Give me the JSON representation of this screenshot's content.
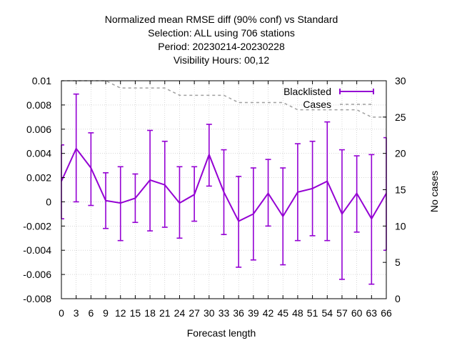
{
  "chart_data": {
    "type": "line",
    "title_lines": [
      "Normalized mean RMSE diff (90% conf) vs Standard",
      "Selection: ALL using   706 stations",
      "Period: 20230214-20230228",
      "Visibility   Hours: 00,12"
    ],
    "xlabel": "Forecast length",
    "ylabel": "",
    "y2label": "No cases",
    "x_ticks": [
      0,
      3,
      6,
      9,
      12,
      15,
      18,
      21,
      24,
      27,
      30,
      33,
      36,
      39,
      42,
      45,
      48,
      51,
      54,
      57,
      60,
      63,
      66
    ],
    "y_ticks": [
      "0.01",
      "0.008",
      "0.006",
      "0.004",
      "0.002",
      "0",
      "-0.002",
      "-0.004",
      "-0.006",
      "-0.008"
    ],
    "y_tick_values": [
      0.01,
      0.008,
      0.006,
      0.004,
      0.002,
      0,
      -0.002,
      -0.004,
      -0.006,
      -0.008
    ],
    "y2_ticks": [
      30,
      25,
      20,
      15,
      10,
      5,
      0
    ],
    "xlim": [
      0,
      66
    ],
    "ylim": [
      -0.008,
      0.01
    ],
    "y2lim": [
      0,
      30
    ],
    "grid": true,
    "legend_position": "top-right",
    "series": [
      {
        "name": "Blacklisted",
        "color": "#9400d3",
        "style": "errorbars",
        "x": [
          0,
          3,
          6,
          9,
          12,
          15,
          18,
          21,
          24,
          27,
          30,
          33,
          36,
          39,
          42,
          45,
          48,
          51,
          54,
          57,
          60,
          63,
          66
        ],
        "y": [
          0.0017,
          0.0044,
          0.0028,
          0.0001,
          -0.0001,
          0.0003,
          0.0018,
          0.0014,
          -0.0001,
          0.0006,
          0.0039,
          0.0008,
          -0.0016,
          -0.001,
          0.0007,
          -0.0012,
          0.0008,
          0.0011,
          0.0017,
          -0.001,
          0.0007,
          -0.0014,
          0.0007
        ],
        "ylow": [
          -0.0014,
          0.0,
          -0.0003,
          -0.0022,
          -0.0032,
          -0.0017,
          -0.0024,
          -0.0021,
          -0.003,
          -0.0016,
          0.0013,
          -0.0027,
          -0.0054,
          -0.0048,
          -0.002,
          -0.0052,
          -0.0032,
          -0.0028,
          -0.0032,
          -0.0064,
          -0.0025,
          -0.0068,
          -0.004
        ],
        "yhigh": [
          0.0047,
          0.0089,
          0.0057,
          0.0024,
          0.0029,
          0.0023,
          0.0059,
          0.005,
          0.0029,
          0.0029,
          0.0064,
          0.0043,
          0.0021,
          0.0028,
          0.0035,
          0.0028,
          0.0048,
          0.005,
          0.0066,
          0.0043,
          0.0038,
          0.0039,
          0.0053
        ]
      },
      {
        "name": "Cases",
        "color": "#a0a0a0",
        "style": "dashed-line",
        "axis": "y2",
        "x": [
          0,
          3,
          6,
          9,
          12,
          15,
          18,
          21,
          24,
          27,
          30,
          33,
          36,
          39,
          42,
          45,
          48,
          51,
          54,
          57,
          60,
          63,
          66
        ],
        "y": [
          30,
          30,
          30,
          30,
          29,
          29,
          29,
          29,
          28,
          28,
          28,
          28,
          27,
          27,
          27,
          27,
          26,
          26,
          26,
          26,
          26,
          25,
          25
        ]
      }
    ]
  }
}
